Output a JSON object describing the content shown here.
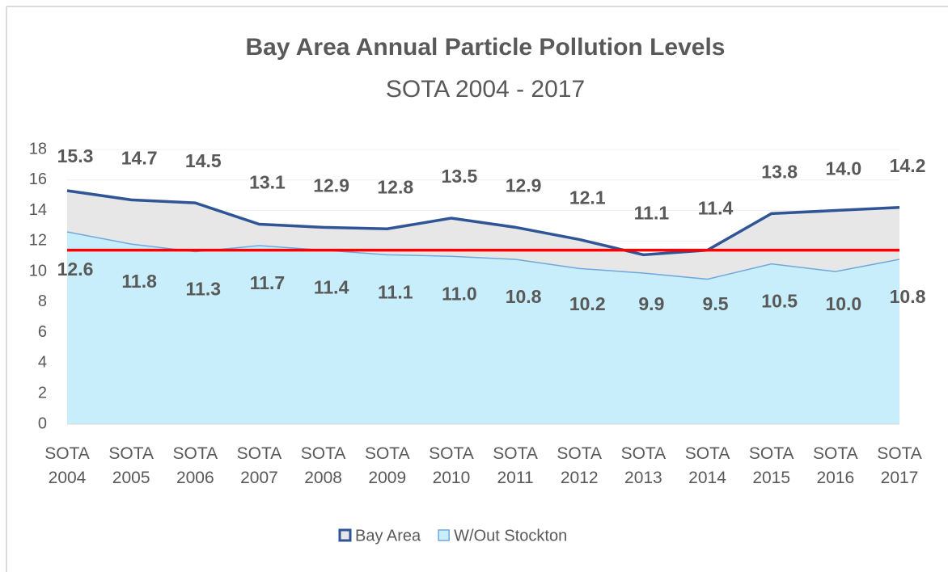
{
  "chart_data": {
    "type": "area",
    "title": "Bay Area Annual Particle Pollution Levels",
    "subtitle": "SOTA 2004 - 2017",
    "categories": [
      "SOTA 2004",
      "SOTA 2005",
      "SOTA 2006",
      "SOTA 2007",
      "SOTA 2008",
      "SOTA 2009",
      "SOTA 2010",
      "SOTA 2011",
      "SOTA 2012",
      "SOTA 2013",
      "SOTA 2014",
      "SOTA 2015",
      "SOTA 2016",
      "SOTA 2017"
    ],
    "series": [
      {
        "name": "Bay Area",
        "color": "#2f5597",
        "fill": "#e7e7e7",
        "values": [
          15.3,
          14.7,
          14.5,
          13.1,
          12.9,
          12.8,
          13.5,
          12.9,
          12.1,
          11.1,
          11.4,
          13.8,
          14.0,
          14.2
        ],
        "value_labels": [
          "15.3",
          "14.7",
          "14.5",
          "13.1",
          "12.9",
          "12.8",
          "13.5",
          "12.9",
          "12.1",
          "11.1",
          "11.4",
          "13.8",
          "14.0",
          "14.2"
        ]
      },
      {
        "name": "W/Out Stockton",
        "color": "#6fa8dc",
        "fill": "#c7eefa",
        "values": [
          12.6,
          11.8,
          11.3,
          11.7,
          11.4,
          11.1,
          11.0,
          10.8,
          10.2,
          9.9,
          9.5,
          10.5,
          10.0,
          10.8
        ],
        "value_labels": [
          "12.6",
          "11.8",
          "11.3",
          "11.7",
          "11.4",
          "11.1",
          "11.0",
          "10.8",
          "10.2",
          "9.9",
          "9.5",
          "10.5",
          "10.0",
          "10.8"
        ]
      }
    ],
    "reference_line": {
      "value": 11.4,
      "color": "#ff0000"
    },
    "ylim": [
      0,
      18
    ],
    "yticks": [
      0,
      2,
      4,
      6,
      8,
      10,
      12,
      14,
      16,
      18
    ],
    "grid": true
  }
}
